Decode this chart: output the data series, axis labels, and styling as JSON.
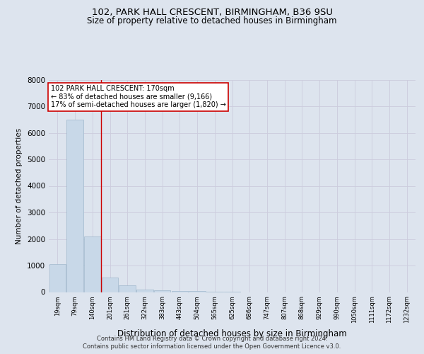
{
  "title1": "102, PARK HALL CRESCENT, BIRMINGHAM, B36 9SU",
  "title2": "Size of property relative to detached houses in Birmingham",
  "xlabel": "Distribution of detached houses by size in Birmingham",
  "ylabel": "Number of detached properties",
  "footer1": "Contains HM Land Registry data © Crown copyright and database right 2024.",
  "footer2": "Contains public sector information licensed under the Open Government Licence v3.0.",
  "bar_labels": [
    "19sqm",
    "79sqm",
    "140sqm",
    "201sqm",
    "261sqm",
    "322sqm",
    "383sqm",
    "443sqm",
    "504sqm",
    "565sqm",
    "625sqm",
    "686sqm",
    "747sqm",
    "807sqm",
    "868sqm",
    "929sqm",
    "990sqm",
    "1050sqm",
    "1111sqm",
    "1172sqm",
    "1232sqm"
  ],
  "bar_values": [
    1050,
    6500,
    2100,
    550,
    250,
    100,
    70,
    50,
    30,
    20,
    20,
    0,
    0,
    0,
    0,
    0,
    0,
    0,
    0,
    0,
    0
  ],
  "bar_color": "#c8d8e8",
  "bar_edge_color": "#a0b8cc",
  "grid_color": "#ccccdd",
  "vline_x_index": 2.5,
  "vline_color": "#cc0000",
  "annotation_text": "102 PARK HALL CRESCENT: 170sqm\n← 83% of detached houses are smaller (9,166)\n17% of semi-detached houses are larger (1,820) →",
  "annotation_box_color": "#ffffff",
  "annotation_box_edge": "#cc0000",
  "ylim": [
    0,
    8000
  ],
  "yticks": [
    0,
    1000,
    2000,
    3000,
    4000,
    5000,
    6000,
    7000,
    8000
  ],
  "bg_color": "#dde4ee",
  "plot_bg_color": "#dde4ee"
}
